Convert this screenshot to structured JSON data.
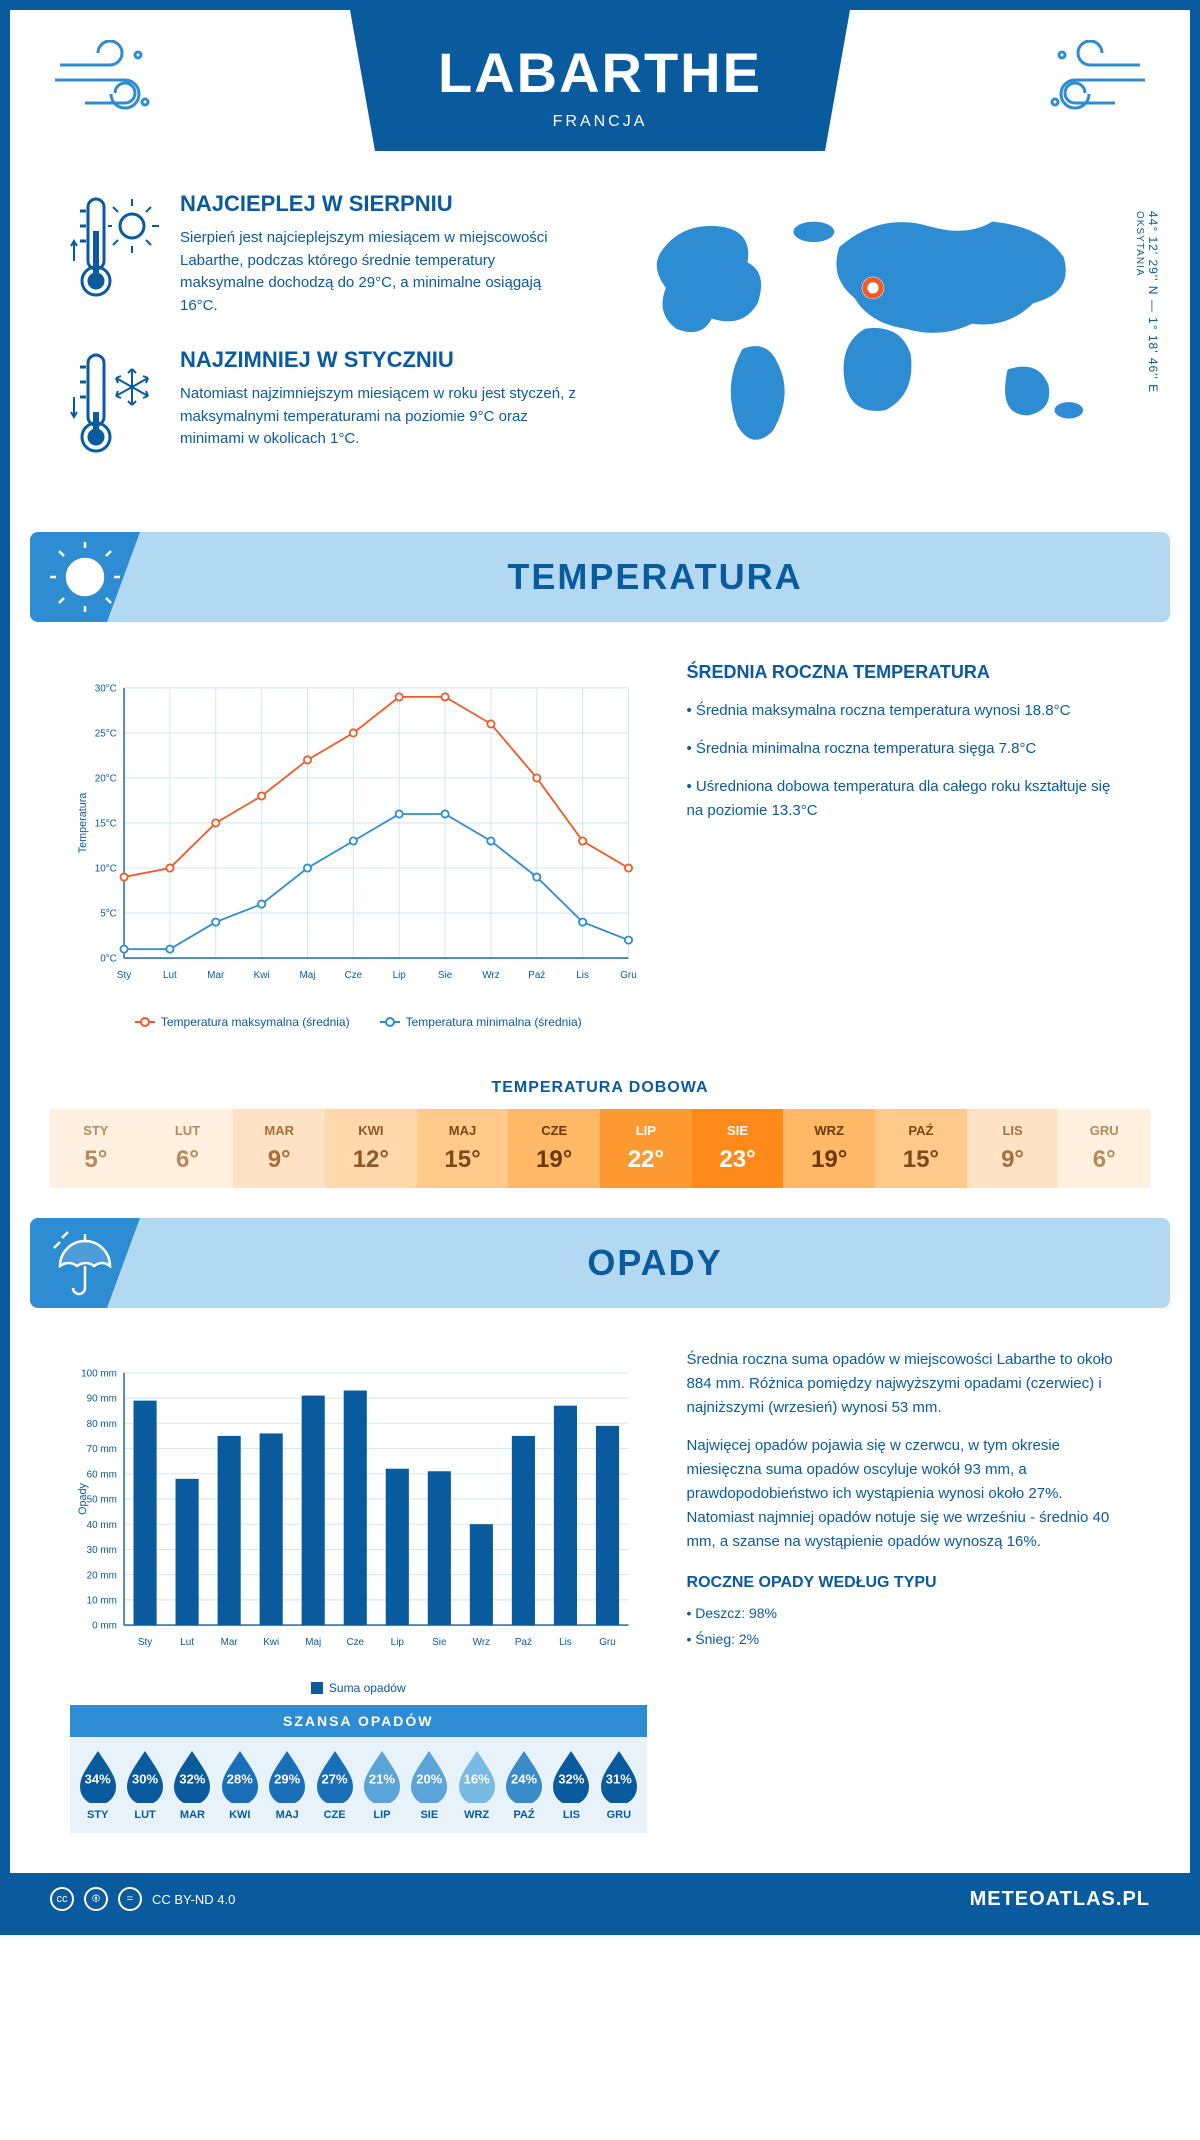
{
  "header": {
    "title": "LABARTHE",
    "subtitle": "FRANCJA"
  },
  "coords": {
    "lat": "44° 12' 29'' N — 1° 18' 46'' E",
    "region": "OKSYTANIA"
  },
  "facts": {
    "hot": {
      "title": "NAJCIEPLEJ W SIERPNIU",
      "text": "Sierpień jest najcieplejszym miesiącem w miejscowości Labarthe, podczas którego średnie temperatury maksymalne dochodzą do 29°C, a minimalne osiągają 16°C."
    },
    "cold": {
      "title": "NAJZIMNIEJ W STYCZNIU",
      "text": "Natomiast najzimniejszym miesiącem w roku jest styczeń, z maksymalnymi temperaturami na poziomie 9°C oraz minimami w okolicach 1°C."
    }
  },
  "temp_section": {
    "title": "TEMPERATURA",
    "avg_title": "ŚREDNIA ROCZNA TEMPERATURA",
    "bullets": [
      "• Średnia maksymalna roczna temperatura wynosi 18.8°C",
      "• Średnia minimalna roczna temperatura sięga 7.8°C",
      "• Uśredniona dobowa temperatura dla całego roku kształtuje się na poziomie 13.3°C"
    ],
    "legend_max": "Temperatura maksymalna (średnia)",
    "legend_min": "Temperatura minimalna (średnia)",
    "daily_title": "TEMPERATURA DOBOWA"
  },
  "months": [
    "Sty",
    "Lut",
    "Mar",
    "Kwi",
    "Maj",
    "Cze",
    "Lip",
    "Sie",
    "Wrz",
    "Paź",
    "Lis",
    "Gru"
  ],
  "months_upper": [
    "STY",
    "LUT",
    "MAR",
    "KWI",
    "MAJ",
    "CZE",
    "LIP",
    "SIE",
    "WRZ",
    "PAŹ",
    "LIS",
    "GRU"
  ],
  "temp_chart": {
    "type": "line",
    "y_label": "Temperatura",
    "ylim": [
      0,
      30
    ],
    "ytick_step": 5,
    "ytick_suffix": "°C",
    "max_series": [
      9,
      10,
      15,
      18,
      22,
      25,
      29,
      29,
      26,
      20,
      13,
      10
    ],
    "min_series": [
      1,
      1,
      4,
      6,
      10,
      13,
      16,
      16,
      13,
      9,
      4,
      2
    ],
    "max_color": "#f05a28",
    "min_color": "#2e8cd3",
    "grid_color": "#cfe3f5",
    "bg_color": "#ffffff",
    "marker": "circle",
    "line_width": 2
  },
  "daily": {
    "values": [
      "5°",
      "6°",
      "9°",
      "12°",
      "15°",
      "19°",
      "22°",
      "23°",
      "19°",
      "15°",
      "9°",
      "6°"
    ],
    "bg_colors": [
      "#fff0e0",
      "#fff0e0",
      "#ffe3c4",
      "#ffd8ab",
      "#ffc98a",
      "#ffb866",
      "#ff9a33",
      "#ff8a1a",
      "#ffb866",
      "#ffc98a",
      "#ffe3c4",
      "#fff0e0"
    ],
    "text_colors": [
      "#b88a5a",
      "#b88a5a",
      "#a86f3a",
      "#8a5a28",
      "#7a4a1a",
      "#6a3a0a",
      "#ffffff",
      "#ffffff",
      "#6a3a0a",
      "#7a4a1a",
      "#a86f3a",
      "#b88a5a"
    ]
  },
  "precip_section": {
    "title": "OPADY",
    "para1": "Średnia roczna suma opadów w miejscowości Labarthe to około 884 mm. Różnica pomiędzy najwyższymi opadami (czerwiec) i najniższymi (wrzesień) wynosi 53 mm.",
    "para2": "Najwięcej opadów pojawia się w czerwcu, w tym okresie miesięczna suma opadów oscyluje wokół 93 mm, a prawdopodobieństwo ich wystąpienia wynosi około 27%. Natomiast najmniej opadów notuje się we wrześniu - średnio 40 mm, a szanse na wystąpienie opadów wynoszą 16%.",
    "legend": "Suma opadów",
    "chance_title": "SZANSA OPADÓW",
    "type_title": "ROCZNE OPADY WEDŁUG TYPU",
    "type_rain": "• Deszcz: 98%",
    "type_snow": "• Śnieg: 2%"
  },
  "precip_chart": {
    "type": "bar",
    "y_label": "Opady",
    "ylim": [
      0,
      100
    ],
    "ytick_step": 10,
    "ytick_suffix": " mm",
    "values": [
      89,
      58,
      75,
      76,
      91,
      93,
      62,
      61,
      40,
      75,
      87,
      79
    ],
    "bar_color": "#0a5a9e",
    "grid_color": "#cfe3f5",
    "bar_width": 0.55
  },
  "chance": {
    "values": [
      "34%",
      "30%",
      "32%",
      "28%",
      "29%",
      "27%",
      "21%",
      "20%",
      "16%",
      "24%",
      "32%",
      "31%"
    ],
    "colors": [
      "#0a5a9e",
      "#0a5a9e",
      "#0a5a9e",
      "#1a6fb8",
      "#1a6fb8",
      "#1a6fb8",
      "#5aa4d8",
      "#5aa4d8",
      "#7abbe3",
      "#3a8cc9",
      "#0a5a9e",
      "#0a5a9e"
    ]
  },
  "footer": {
    "license": "CC BY-ND 4.0",
    "site": "METEOATLAS.PL"
  }
}
